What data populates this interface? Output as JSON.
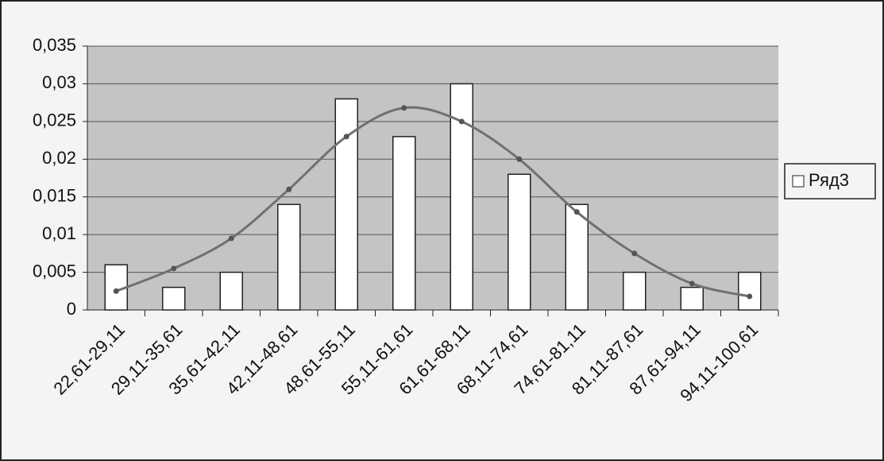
{
  "chart_data": {
    "type": "bar",
    "categories": [
      "22,61-29,11",
      "29,11-35,61",
      "35,61-42,11",
      "42,11-48,61",
      "48,61-55,11",
      "55,11-61,61",
      "61,61-68,11",
      "68,11-74,61",
      "74,61-81,11",
      "81,11-87,61",
      "87,61-94,11",
      "94,11-100,61"
    ],
    "series": [
      {
        "name": "Ряд3",
        "type": "bar",
        "color": "#ffffff",
        "values": [
          0.006,
          0.003,
          0.005,
          0.014,
          0.028,
          0.023,
          0.03,
          0.018,
          0.014,
          0.005,
          0.003,
          0.005
        ]
      },
      {
        "type": "line",
        "color": "#707070",
        "values": [
          0.0025,
          0.0055,
          0.0095,
          0.016,
          0.023,
          0.0268,
          0.025,
          0.02,
          0.013,
          0.0075,
          0.0035,
          0.0018
        ]
      }
    ],
    "ylim": [
      0,
      0.035
    ],
    "yticks": [
      0,
      {
        "value": 0.005,
        "label": "0,005"
      },
      {
        "value": 0.01,
        "label": "0,01"
      },
      {
        "value": 0.015,
        "label": "0,015"
      },
      {
        "value": 0.02,
        "label": "0,02"
      },
      {
        "value": 0.025,
        "label": "0,025"
      },
      {
        "value": 0.03,
        "label": "0,03"
      },
      {
        "value": 0.035,
        "label": "0,035"
      }
    ],
    "grid": true,
    "legend": "right"
  }
}
